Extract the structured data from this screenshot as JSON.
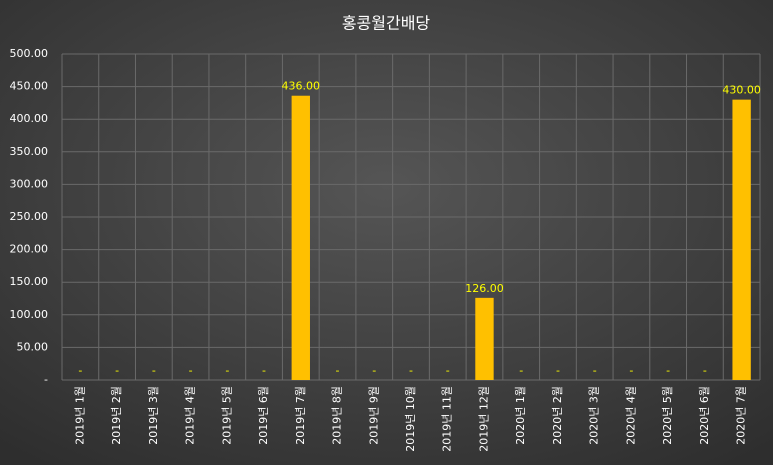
{
  "chart_data": {
    "type": "bar",
    "title": "홍콩월간배당",
    "categories": [
      "2019년 1월",
      "2019년 2월",
      "2019년 3월",
      "2019년 4월",
      "2019년 5월",
      "2019년 6월",
      "2019년 7월",
      "2019년 8월",
      "2019년 9월",
      "2019년 10월",
      "2019년 11월",
      "2019년 12월",
      "2020년 1월",
      "2020년 2월",
      "2020년 3월",
      "2020년 4월",
      "2020년 5월",
      "2020년 6월",
      "2020년 7월"
    ],
    "values": [
      0,
      0,
      0,
      0,
      0,
      0,
      436,
      0,
      0,
      0,
      0,
      126,
      0,
      0,
      0,
      0,
      0,
      0,
      430
    ],
    "value_labels": [
      "-",
      "-",
      "-",
      "-",
      "-",
      "-",
      "436.00",
      "-",
      "-",
      "-",
      "-",
      "126.00",
      "-",
      "-",
      "-",
      "-",
      "-",
      "-",
      "430.00"
    ],
    "color": "#ffc000",
    "ylim": [
      0,
      500
    ],
    "yticks": [
      {
        "value": 0,
        "label": "-"
      },
      {
        "value": 50,
        "label": "50.00"
      },
      {
        "value": 100,
        "label": "100.00"
      },
      {
        "value": 150,
        "label": "150.00"
      },
      {
        "value": 200,
        "label": "200.00"
      },
      {
        "value": 250,
        "label": "250.00"
      },
      {
        "value": 300,
        "label": "300.00"
      },
      {
        "value": 350,
        "label": "350.00"
      },
      {
        "value": 400,
        "label": "400.00"
      },
      {
        "value": 450,
        "label": "450.00"
      },
      {
        "value": 500,
        "label": "500.00"
      }
    ],
    "grid": true
  }
}
